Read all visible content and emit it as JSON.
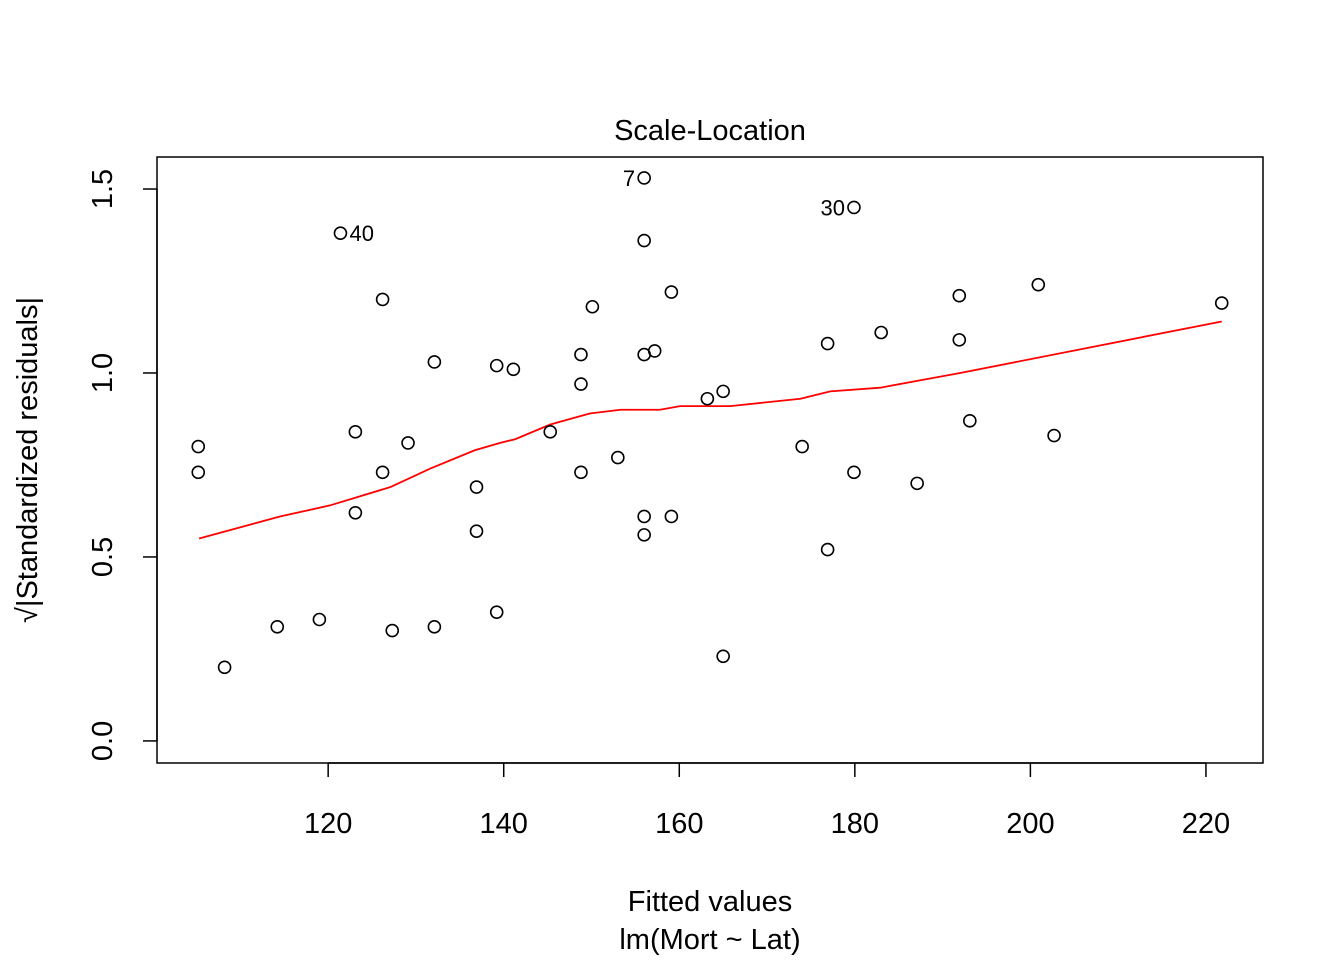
{
  "chart_data": {
    "type": "scatter",
    "title": "Scale-Location",
    "xlabel": "Fitted values",
    "subtitle": "lm(Mort ~ Lat)",
    "ylabel": "√|Standardized residuals|",
    "xlim": [
      100.5,
      226.5
    ],
    "ylim": [
      -0.06,
      1.587
    ],
    "xticks": [
      120,
      140,
      160,
      180,
      200,
      220
    ],
    "yticks": [
      0.0,
      0.5,
      1.0,
      1.5
    ],
    "ytick_labels": [
      "0.0",
      "0.5",
      "1.0",
      "1.5"
    ],
    "grid": false,
    "colors": {
      "points": "#000000",
      "smooth": "#ff0000"
    },
    "points": [
      [
        105.2,
        0.8
      ],
      [
        105.2,
        0.73
      ],
      [
        108.2,
        0.2
      ],
      [
        114.2,
        0.31
      ],
      [
        119.0,
        0.33
      ],
      [
        121.4,
        1.38
      ],
      [
        123.1,
        0.84
      ],
      [
        123.1,
        0.62
      ],
      [
        126.2,
        1.2
      ],
      [
        126.2,
        0.73
      ],
      [
        127.3,
        0.3
      ],
      [
        129.1,
        0.81
      ],
      [
        132.1,
        1.03
      ],
      [
        132.1,
        0.31
      ],
      [
        136.9,
        0.69
      ],
      [
        136.9,
        0.57
      ],
      [
        139.2,
        1.02
      ],
      [
        139.2,
        0.35
      ],
      [
        141.1,
        1.01
      ],
      [
        145.3,
        0.84
      ],
      [
        148.8,
        1.05
      ],
      [
        148.8,
        0.97
      ],
      [
        148.8,
        0.73
      ],
      [
        150.1,
        1.18
      ],
      [
        153.0,
        0.77
      ],
      [
        156.0,
        1.53
      ],
      [
        156.0,
        1.36
      ],
      [
        156.0,
        1.05
      ],
      [
        156.0,
        0.61
      ],
      [
        156.0,
        0.56
      ],
      [
        157.2,
        1.06
      ],
      [
        159.1,
        1.22
      ],
      [
        159.1,
        0.61
      ],
      [
        163.2,
        0.93
      ],
      [
        165.0,
        0.95
      ],
      [
        165.0,
        0.23
      ],
      [
        174.0,
        0.8
      ],
      [
        176.9,
        1.08
      ],
      [
        176.9,
        0.52
      ],
      [
        179.9,
        1.45
      ],
      [
        179.9,
        0.73
      ],
      [
        183.0,
        1.11
      ],
      [
        187.1,
        0.7
      ],
      [
        191.9,
        1.21
      ],
      [
        191.9,
        1.09
      ],
      [
        193.1,
        0.87
      ],
      [
        200.9,
        1.24
      ],
      [
        202.7,
        0.83
      ],
      [
        221.8,
        1.19
      ]
    ],
    "point_labels": [
      {
        "text": "40",
        "x": 121.4,
        "y": 1.38,
        "side": "right"
      },
      {
        "text": "7",
        "x": 156.0,
        "y": 1.53,
        "side": "left"
      },
      {
        "text": "30",
        "x": 179.9,
        "y": 1.45,
        "side": "left"
      }
    ],
    "smooth_line": [
      [
        105.3,
        0.55
      ],
      [
        114.5,
        0.61
      ],
      [
        120.2,
        0.64
      ],
      [
        127.1,
        0.69
      ],
      [
        131.6,
        0.74
      ],
      [
        136.7,
        0.79
      ],
      [
        139.6,
        0.81
      ],
      [
        141.3,
        0.82
      ],
      [
        145.3,
        0.86
      ],
      [
        149.8,
        0.89
      ],
      [
        153.3,
        0.9
      ],
      [
        157.8,
        0.9
      ],
      [
        160.1,
        0.91
      ],
      [
        165.8,
        0.91
      ],
      [
        173.8,
        0.93
      ],
      [
        177.2,
        0.95
      ],
      [
        182.9,
        0.96
      ],
      [
        187.4,
        0.98
      ],
      [
        192.0,
        1.0
      ],
      [
        221.8,
        1.14
      ]
    ]
  }
}
